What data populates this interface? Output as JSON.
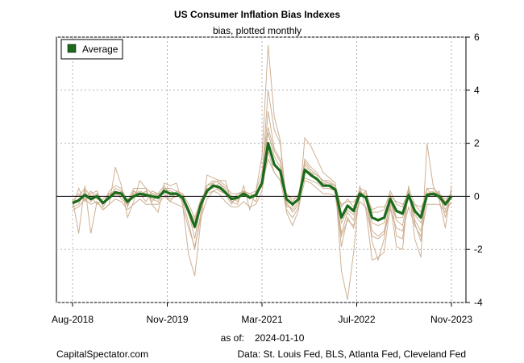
{
  "chart_data": {
    "type": "line",
    "title": "US Consumer Inflation Bias Indexes",
    "subtitle": "bias, plotted monthly",
    "as_of_label": "as of:",
    "as_of_date": "2024-01-10",
    "source_left": "CapitalSpectator.com",
    "source_right": "Data: St. Louis Fed, BLS, Atlanta Fed, Cleveland Fed",
    "x_tick_labels": [
      "Aug-2018",
      "Nov-2019",
      "Mar-2021",
      "Jul-2022",
      "Nov-2023"
    ],
    "y_tick_labels": [
      "-4",
      "-2",
      "0",
      "2",
      "4",
      "6"
    ],
    "ylim": [
      -4,
      6
    ],
    "grid": true,
    "legend_position": "top-left",
    "colors": {
      "average": "#1a6b1a",
      "components": "#c9a98a",
      "zero": "#000000",
      "grid": "#b0b0b0"
    },
    "average": {
      "name": "Average",
      "values": [
        -0.25,
        -0.15,
        0.05,
        -0.1,
        0.0,
        -0.25,
        -0.05,
        0.15,
        0.1,
        -0.2,
        0.0,
        0.1,
        0.05,
        0.0,
        -0.05,
        0.2,
        0.1,
        0.1,
        -0.05,
        -0.55,
        -1.15,
        -0.3,
        0.2,
        0.4,
        0.35,
        0.15,
        -0.1,
        -0.05,
        0.1,
        -0.05,
        0.05,
        0.5,
        2.0,
        1.2,
        0.95,
        -0.1,
        -0.3,
        -0.1,
        1.0,
        0.8,
        0.65,
        0.4,
        0.4,
        0.25,
        -0.8,
        -0.35,
        -0.55,
        0.1,
        -0.05,
        -0.8,
        -0.9,
        -0.8,
        -0.1,
        -0.55,
        -0.65,
        0.05,
        -0.55,
        -0.8,
        0.05,
        0.1,
        0.0,
        -0.3,
        0.0
      ]
    },
    "components": [
      {
        "values": [
          -0.4,
          -0.3,
          0.2,
          -0.2,
          0.1,
          -0.4,
          0.0,
          0.3,
          0.2,
          -0.3,
          0.1,
          0.2,
          0.1,
          -0.1,
          -0.2,
          0.3,
          0.2,
          0.1,
          -0.2,
          -1.0,
          -2.0,
          -0.6,
          0.4,
          0.6,
          0.5,
          0.2,
          -0.2,
          -0.1,
          0.2,
          -0.1,
          0.1,
          0.6,
          3.2,
          1.8,
          1.4,
          -0.3,
          -0.5,
          -0.2,
          1.4,
          1.1,
          0.9,
          0.5,
          0.5,
          0.3,
          -1.4,
          -0.6,
          -0.9,
          0.2,
          -0.1,
          -1.3,
          -1.5,
          -1.3,
          -0.2,
          -0.9,
          -1.1,
          0.1,
          -0.9,
          -1.3,
          0.1,
          0.2,
          0.0,
          -0.5,
          0.0
        ]
      },
      {
        "values": [
          -0.1,
          -1.4,
          0.4,
          -1.4,
          -0.2,
          -0.5,
          -0.3,
          1.1,
          0.4,
          -0.8,
          -0.2,
          0.6,
          0.3,
          -0.3,
          -0.6,
          0.5,
          0.4,
          0.5,
          -0.3,
          -2.2,
          -3.0,
          -0.9,
          0.8,
          0.7,
          0.6,
          0.6,
          -0.2,
          -0.3,
          0.4,
          -0.5,
          0.2,
          1.5,
          5.7,
          3.0,
          2.1,
          -0.6,
          -1.1,
          -0.5,
          2.2,
          1.9,
          1.4,
          0.9,
          0.7,
          0.5,
          -2.8,
          -3.9,
          -2.1,
          0.4,
          -0.5,
          -2.4,
          -2.3,
          -2.1,
          -0.3,
          -1.9,
          -2.0,
          0.4,
          -1.6,
          -2.3,
          2.0,
          0.4,
          -0.1,
          -1.2,
          0.4
        ]
      },
      {
        "values": [
          -0.2,
          0.1,
          -0.1,
          0.2,
          -0.1,
          -0.2,
          -0.1,
          0.1,
          0.0,
          -0.1,
          0.0,
          0.1,
          0.0,
          0.1,
          0.1,
          0.1,
          -0.1,
          0.0,
          0.1,
          -0.3,
          -0.8,
          -0.1,
          0.1,
          0.2,
          0.3,
          0.1,
          -0.1,
          0.0,
          0.0,
          0.1,
          0.0,
          0.4,
          1.4,
          0.9,
          0.6,
          0.1,
          -0.1,
          0.0,
          0.7,
          0.6,
          0.5,
          0.3,
          0.3,
          0.2,
          -0.3,
          -0.2,
          -0.2,
          0.1,
          0.1,
          -0.5,
          -0.4,
          -0.4,
          0.0,
          -0.2,
          -0.3,
          0.0,
          -0.3,
          -0.4,
          0.0,
          0.1,
          0.1,
          -0.1,
          0.1
        ]
      },
      {
        "values": [
          -0.4,
          0.3,
          -0.2,
          0.1,
          0.2,
          -0.3,
          0.1,
          0.2,
          -0.1,
          -0.3,
          0.2,
          0.1,
          -0.2,
          0.2,
          0.1,
          0.1,
          -0.2,
          0.2,
          0.1,
          -0.6,
          -1.6,
          -0.3,
          0.2,
          0.5,
          0.2,
          0.1,
          -0.3,
          0.1,
          0.1,
          0.0,
          -0.2,
          0.7,
          4.0,
          2.5,
          2.0,
          -0.2,
          -0.6,
          -0.3,
          1.2,
          0.9,
          0.8,
          0.6,
          0.6,
          0.4,
          -1.9,
          -0.8,
          -1.2,
          0.0,
          0.2,
          -1.7,
          -2.4,
          -1.6,
          0.1,
          -1.5,
          -1.6,
          0.2,
          -1.0,
          -1.7,
          0.3,
          0.0,
          0.2,
          -0.8,
          0.2
        ]
      },
      {
        "values": [
          -0.3,
          -0.2,
          0.1,
          0.0,
          -0.3,
          -0.1,
          0.1,
          0.0,
          0.2,
          -0.4,
          0.2,
          0.0,
          0.2,
          -0.2,
          0.1,
          0.4,
          0.0,
          0.1,
          -0.1,
          -0.7,
          -1.2,
          -0.2,
          0.3,
          0.3,
          0.5,
          0.3,
          0.0,
          -0.2,
          0.2,
          0.0,
          0.1,
          0.6,
          2.4,
          1.5,
          1.1,
          -0.4,
          -0.4,
          0.0,
          0.9,
          0.9,
          0.6,
          0.5,
          0.4,
          0.3,
          -1.0,
          -0.5,
          -0.7,
          0.2,
          -0.1,
          -1.0,
          -1.1,
          -1.0,
          -0.1,
          -0.8,
          -0.8,
          0.0,
          -0.7,
          -1.0,
          0.1,
          0.1,
          -0.1,
          -0.3,
          0.0
        ]
      },
      {
        "values": [
          0.0,
          0.0,
          0.3,
          0.0,
          0.1,
          -0.3,
          0.2,
          0.4,
          0.3,
          -0.2,
          0.3,
          0.3,
          0.3,
          0.1,
          0.0,
          0.3,
          0.3,
          0.2,
          0.0,
          -0.5,
          -0.9,
          -0.2,
          0.4,
          0.5,
          0.6,
          0.4,
          0.1,
          0.1,
          0.2,
          0.1,
          0.2,
          0.9,
          2.6,
          1.7,
          1.3,
          0.1,
          -0.2,
          0.1,
          1.3,
          1.0,
          0.8,
          0.6,
          0.5,
          0.4,
          -0.4,
          -0.1,
          -0.4,
          0.3,
          0.2,
          -0.6,
          -0.6,
          -0.5,
          0.2,
          -0.3,
          -0.4,
          0.3,
          -0.3,
          -0.6,
          0.3,
          0.3,
          0.1,
          -0.2,
          0.1
        ]
      },
      {
        "values": [
          -0.5,
          -0.4,
          -0.1,
          -0.3,
          -0.2,
          -0.5,
          -0.3,
          -0.1,
          -0.2,
          -0.5,
          -0.3,
          -0.1,
          -0.3,
          -0.3,
          -0.3,
          0.0,
          -0.2,
          -0.3,
          -0.4,
          -1.2,
          -1.9,
          -0.8,
          -0.1,
          0.2,
          0.1,
          -0.2,
          -0.4,
          -0.4,
          -0.2,
          -0.4,
          -0.3,
          0.2,
          1.7,
          0.9,
          0.6,
          -0.5,
          -0.8,
          -0.4,
          0.6,
          0.5,
          0.3,
          0.1,
          0.1,
          0.0,
          -1.5,
          -0.9,
          -1.1,
          -0.2,
          -0.4,
          -1.5,
          -1.6,
          -1.4,
          -0.5,
          -1.2,
          -1.3,
          -0.4,
          -1.1,
          -1.5,
          -0.3,
          -0.3,
          -0.3,
          -0.6,
          -0.2
        ]
      }
    ]
  }
}
